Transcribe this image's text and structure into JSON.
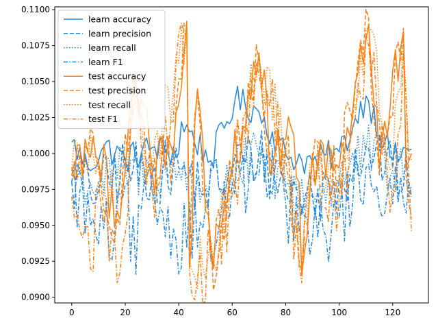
{
  "chart_data": {
    "type": "line",
    "title": "",
    "xlabel": "",
    "ylabel": "",
    "xlim": [
      -6.35,
      133.35
    ],
    "ylim": [
      0.0896,
      0.1102
    ],
    "xticks": [
      0,
      20,
      40,
      60,
      80,
      100,
      120
    ],
    "xtick_labels": [
      "0",
      "20",
      "40",
      "60",
      "80",
      "100",
      "120"
    ],
    "yticks": [
      0.09,
      0.0925,
      0.095,
      0.0975,
      0.1,
      0.1025,
      0.105,
      0.1075,
      0.11
    ],
    "ytick_labels": [
      "0.0900",
      "0.0925",
      "0.0950",
      "0.0975",
      "0.1000",
      "0.1025",
      "0.1050",
      "0.1075",
      "0.1100"
    ],
    "grid": false,
    "legend_position": "top-left",
    "n_points": 128,
    "series": [
      {
        "name": "learn accuracy",
        "color": "#1f88e5",
        "dash": "solid",
        "center": 0.1001,
        "amp": 0.0011,
        "anchors": [
          [
            0,
            0.1008
          ],
          [
            6,
            0.099
          ],
          [
            12,
            0.1005
          ],
          [
            20,
            0.0996
          ],
          [
            30,
            0.1004
          ],
          [
            40,
            0.1
          ],
          [
            41,
            0.1022
          ],
          [
            52,
            0.0995
          ],
          [
            61,
            0.1037
          ],
          [
            70,
            0.1029
          ],
          [
            80,
            0.0999
          ],
          [
            90,
            0.0994
          ],
          [
            100,
            0.1001
          ],
          [
            105,
            0.1018
          ],
          [
            110,
            0.104
          ],
          [
            120,
            0.0996
          ],
          [
            127,
            0.1003
          ]
        ]
      },
      {
        "name": "learn precision",
        "color": "#1f88e5",
        "dash": "dashed",
        "center": 0.0985,
        "amp": 0.0022,
        "anchors": [
          [
            0,
            0.098
          ],
          [
            10,
            0.0975
          ],
          [
            20,
            0.099
          ],
          [
            30,
            0.0985
          ],
          [
            40,
            0.099
          ],
          [
            50,
            0.0975
          ],
          [
            60,
            0.0985
          ],
          [
            70,
            0.1
          ],
          [
            80,
            0.0975
          ],
          [
            90,
            0.097
          ],
          [
            100,
            0.098
          ],
          [
            110,
            0.1005
          ],
          [
            120,
            0.099
          ],
          [
            127,
            0.0975
          ]
        ]
      },
      {
        "name": "learn recall",
        "color": "#1f88e5",
        "dash": "dotted",
        "center": 0.0985,
        "amp": 0.002,
        "anchors": [
          [
            0,
            0.0985
          ],
          [
            10,
            0.0978
          ],
          [
            20,
            0.0988
          ],
          [
            30,
            0.0985
          ],
          [
            40,
            0.0988
          ],
          [
            50,
            0.0978
          ],
          [
            60,
            0.0985
          ],
          [
            70,
            0.0998
          ],
          [
            80,
            0.0978
          ],
          [
            90,
            0.0972
          ],
          [
            100,
            0.0982
          ],
          [
            110,
            0.1002
          ],
          [
            120,
            0.0988
          ],
          [
            127,
            0.0978
          ]
        ]
      },
      {
        "name": "learn F1",
        "color": "#1f88e5",
        "dash": "dashdot",
        "center": 0.0975,
        "amp": 0.0026,
        "anchors": [
          [
            0,
            0.098
          ],
          [
            7,
            0.095
          ],
          [
            16,
            0.094
          ],
          [
            21,
            0.098
          ],
          [
            22,
            0.0925
          ],
          [
            30,
            0.0975
          ],
          [
            39,
            0.094
          ],
          [
            50,
            0.0962
          ],
          [
            52,
            0.0925
          ],
          [
            60,
            0.098
          ],
          [
            70,
            0.0985
          ],
          [
            80,
            0.0965
          ],
          [
            90,
            0.094
          ],
          [
            100,
            0.0955
          ],
          [
            110,
            0.099
          ],
          [
            120,
            0.0965
          ],
          [
            127,
            0.097
          ]
        ]
      },
      {
        "name": "test accuracy",
        "color": "#ff7f0e",
        "dash": "solid",
        "center": 0.0995,
        "amp": 0.0022,
        "anchors": [
          [
            0,
            0.099
          ],
          [
            5,
            0.101
          ],
          [
            10,
            0.0995
          ],
          [
            17,
            0.096
          ],
          [
            24,
            0.1055
          ],
          [
            30,
            0.099
          ],
          [
            38,
            0.1
          ],
          [
            43,
            0.1092
          ],
          [
            44,
            0.092
          ],
          [
            47,
            0.1045
          ],
          [
            50,
            0.096
          ],
          [
            53,
            0.092
          ],
          [
            60,
            0.099
          ],
          [
            70,
            0.107
          ],
          [
            75,
            0.099
          ],
          [
            80,
            0.101
          ],
          [
            85,
            0.098
          ],
          [
            86,
            0.0915
          ],
          [
            90,
            0.1
          ],
          [
            100,
            0.099
          ],
          [
            111,
            0.109
          ],
          [
            115,
            0.099
          ],
          [
            124,
            0.1085
          ],
          [
            125,
            0.099
          ],
          [
            127,
            0.1
          ]
        ]
      },
      {
        "name": "test precision",
        "color": "#ff7f0e",
        "dash": "dashed",
        "center": 0.099,
        "amp": 0.0025,
        "anchors": [
          [
            0,
            0.0985
          ],
          [
            5,
            0.1005
          ],
          [
            10,
            0.099
          ],
          [
            17,
            0.0955
          ],
          [
            24,
            0.105
          ],
          [
            30,
            0.0985
          ],
          [
            38,
            0.0995
          ],
          [
            43,
            0.1088
          ],
          [
            44,
            0.0925
          ],
          [
            47,
            0.104
          ],
          [
            53,
            0.0905
          ],
          [
            60,
            0.0985
          ],
          [
            70,
            0.1065
          ],
          [
            75,
            0.0985
          ],
          [
            80,
            0.1005
          ],
          [
            86,
            0.0918
          ],
          [
            90,
            0.0995
          ],
          [
            100,
            0.0985
          ],
          [
            111,
            0.1094
          ],
          [
            115,
            0.0985
          ],
          [
            124,
            0.1087
          ],
          [
            125,
            0.0985
          ],
          [
            127,
            0.0955
          ]
        ]
      },
      {
        "name": "test recall",
        "color": "#ff7f0e",
        "dash": "dotted",
        "center": 0.0992,
        "amp": 0.0022,
        "anchors": [
          [
            0,
            0.0988
          ],
          [
            10,
            0.0993
          ],
          [
            17,
            0.0958
          ],
          [
            24,
            0.105
          ],
          [
            30,
            0.0988
          ],
          [
            43,
            0.1088
          ],
          [
            44,
            0.0925
          ],
          [
            53,
            0.0925
          ],
          [
            60,
            0.0988
          ],
          [
            70,
            0.1068
          ],
          [
            80,
            0.1005
          ],
          [
            86,
            0.092
          ],
          [
            90,
            0.0995
          ],
          [
            100,
            0.0988
          ],
          [
            111,
            0.1088
          ],
          [
            120,
            0.099
          ],
          [
            124,
            0.1082
          ],
          [
            127,
            0.0995
          ]
        ]
      },
      {
        "name": "test F1",
        "color": "#ff7f0e",
        "dash": "dashdot",
        "center": 0.0975,
        "amp": 0.0028,
        "anchors": [
          [
            0,
            0.097
          ],
          [
            7,
            0.092
          ],
          [
            10,
            0.098
          ],
          [
            17,
            0.091
          ],
          [
            24,
            0.104
          ],
          [
            30,
            0.0975
          ],
          [
            43,
            0.108
          ],
          [
            44,
            0.0918
          ],
          [
            53,
            0.092
          ],
          [
            60,
            0.097
          ],
          [
            70,
            0.1055
          ],
          [
            80,
            0.0995
          ],
          [
            86,
            0.091
          ],
          [
            90,
            0.0985
          ],
          [
            100,
            0.097
          ],
          [
            111,
            0.1075
          ],
          [
            120,
            0.0975
          ],
          [
            124,
            0.107
          ],
          [
            127,
            0.0945
          ]
        ]
      }
    ]
  }
}
